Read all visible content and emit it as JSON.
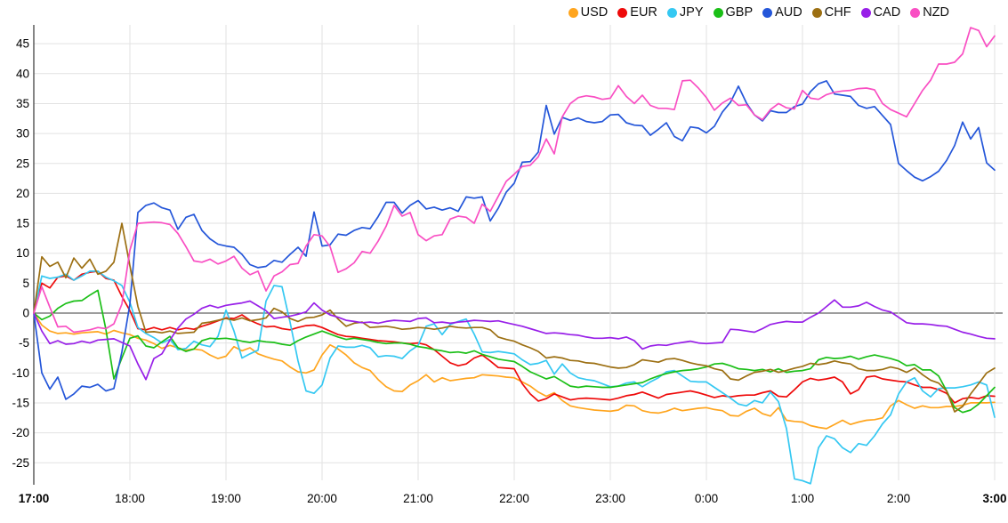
{
  "chart_data": {
    "type": "line",
    "title": "",
    "x_axis": "time",
    "x_start_hour": 17,
    "x_step_minutes": 5,
    "points_per_series": 121,
    "x_tick_labels": [
      "17:00",
      "18:00",
      "19:00",
      "20:00",
      "21:00",
      "22:00",
      "23:00",
      "0:00",
      "1:00",
      "2:00",
      "3:00"
    ],
    "x_bold_tick_labels": [
      "17:00",
      "3:00"
    ],
    "y_ticks": [
      45,
      40,
      35,
      30,
      25,
      20,
      15,
      10,
      5,
      0,
      -5,
      -10,
      -15,
      -20,
      -25
    ],
    "ylim": [
      -29,
      49
    ],
    "grid": true,
    "legend_position": "top-right",
    "zero_line_color": "#3b3b3b",
    "grid_color": "#e2e2e2",
    "axis_line_color": "#444444",
    "tick_text_color": "#000000",
    "series": [
      {
        "name": "USD",
        "color": "#FFA51E",
        "values": [
          0,
          -2.0,
          -3.0,
          -3.4,
          -3.3,
          -3.5,
          -3.3,
          -3.2,
          -3.1,
          -3.5,
          -2.9,
          -3.3,
          -3.6,
          -4.2,
          -4.5,
          -5.1,
          -5.9,
          -5.4,
          -5.8,
          -6.2,
          -6.0,
          -6.2,
          -7.0,
          -7.6,
          -7.2,
          -5.6,
          -6.3,
          -5.8,
          -6.8,
          -7.3,
          -7.7,
          -8.0,
          -9.0,
          -9.8,
          -10.0,
          -9.5,
          -7.0,
          -5.3,
          -6.0,
          -7.0,
          -8.3,
          -9.1,
          -9.6,
          -11.1,
          -12.3,
          -13.0,
          -13.1,
          -12.0,
          -11.3,
          -10.3,
          -11.5,
          -10.8,
          -11.3,
          -11.1,
          -10.9,
          -10.8,
          -10.3,
          -10.4,
          -10.5,
          -10.7,
          -10.8,
          -11.5,
          -12.2,
          -13.2,
          -13.9,
          -13.3,
          -14.6,
          -15.5,
          -15.8,
          -16.0,
          -16.2,
          -16.3,
          -16.4,
          -16.2,
          -15.4,
          -15.5,
          -16.3,
          -16.6,
          -16.7,
          -16.4,
          -15.9,
          -16.3,
          -16.1,
          -15.9,
          -15.8,
          -16.1,
          -16.3,
          -17.1,
          -17.2,
          -16.4,
          -15.9,
          -16.8,
          -17.2,
          -15.8,
          -17.9,
          -18.1,
          -18.2,
          -18.8,
          -19.1,
          -19.3,
          -18.6,
          -17.9,
          -18.6,
          -18.2,
          -17.9,
          -17.8,
          -17.5,
          -15.5,
          -14.6,
          -15.3,
          -15.9,
          -15.5,
          -15.8,
          -15.8,
          -15.6,
          -15.6,
          -15.4,
          -15.0,
          -15.0,
          -15.0,
          -14.9
        ]
      },
      {
        "name": "EUR",
        "color": "#EE0A0A",
        "values": [
          0,
          5.0,
          4.2,
          6.0,
          6.2,
          5.5,
          6.5,
          6.8,
          7.0,
          5.8,
          5.5,
          2.8,
          0.4,
          -2.6,
          -2.8,
          -2.4,
          -2.8,
          -2.4,
          -2.8,
          -2.5,
          -2.7,
          -2.2,
          -1.8,
          -1.3,
          -0.8,
          -0.9,
          -0.3,
          -1.2,
          -1.8,
          -2.3,
          -2.2,
          -2.6,
          -2.8,
          -2.4,
          -2.1,
          -2.0,
          -2.4,
          -3.0,
          -3.6,
          -3.9,
          -4.0,
          -4.2,
          -4.4,
          -4.6,
          -4.7,
          -4.8,
          -5.0,
          -5.1,
          -5.0,
          -5.3,
          -6.1,
          -7.2,
          -8.3,
          -8.8,
          -8.5,
          -7.5,
          -7.0,
          -8.0,
          -9.1,
          -9.2,
          -9.3,
          -11.8,
          -13.5,
          -14.7,
          -14.3,
          -13.5,
          -14.0,
          -14.5,
          -14.3,
          -14.2,
          -14.3,
          -14.4,
          -14.5,
          -14.2,
          -13.8,
          -13.6,
          -13.2,
          -13.7,
          -14.2,
          -13.6,
          -13.4,
          -13.2,
          -13.0,
          -13.3,
          -13.7,
          -14.1,
          -13.8,
          -14.0,
          -13.8,
          -13.7,
          -13.7,
          -13.3,
          -13.0,
          -13.9,
          -14.0,
          -12.8,
          -11.5,
          -10.9,
          -11.2,
          -11.0,
          -10.7,
          -11.5,
          -13.5,
          -12.8,
          -10.7,
          -10.5,
          -11.0,
          -11.2,
          -11.4,
          -11.5,
          -12.0,
          -12.4,
          -12.4,
          -12.8,
          -13.4,
          -15.0,
          -14.3,
          -14.1,
          -14.3,
          -13.8,
          -13.9
        ]
      },
      {
        "name": "JPY",
        "color": "#35C8F2",
        "values": [
          0,
          6.2,
          5.8,
          6.0,
          6.5,
          5.5,
          6.2,
          7.0,
          7.0,
          6.0,
          5.4,
          4.6,
          1.8,
          -2.4,
          -3.4,
          -4.1,
          -5.0,
          -4.4,
          -6.1,
          -5.9,
          -4.7,
          -5.3,
          -5.6,
          -3.9,
          0.5,
          -3.0,
          -7.5,
          -6.8,
          -6.2,
          2.0,
          4.6,
          4.4,
          -1.5,
          -8.0,
          -13.0,
          -13.4,
          -12.0,
          -7.5,
          -5.5,
          -5.7,
          -5.7,
          -5.4,
          -5.8,
          -7.3,
          -7.1,
          -7.2,
          -7.6,
          -6.3,
          -5.4,
          -2.2,
          -1.8,
          -3.6,
          -1.9,
          -1.4,
          -1.0,
          -3.5,
          -6.5,
          -6.6,
          -6.4,
          -6.6,
          -6.8,
          -7.8,
          -8.6,
          -8.4,
          -7.9,
          -10.2,
          -8.5,
          -10.0,
          -10.8,
          -11.1,
          -11.3,
          -11.8,
          -12.3,
          -12.2,
          -11.7,
          -11.5,
          -12.3,
          -11.5,
          -10.8,
          -9.8,
          -9.6,
          -10.5,
          -11.4,
          -11.5,
          -11.5,
          -12.4,
          -13.3,
          -14.2,
          -15.2,
          -15.5,
          -14.6,
          -15.0,
          -13.2,
          -14.8,
          -19.3,
          -27.7,
          -28.0,
          -28.5,
          -22.5,
          -20.5,
          -21.0,
          -22.5,
          -23.3,
          -21.8,
          -22.1,
          -20.5,
          -18.5,
          -17.0,
          -13.5,
          -11.5,
          -10.8,
          -13.0,
          -14.0,
          -12.6,
          -12.5,
          -12.5,
          -12.3,
          -12.0,
          -11.5,
          -12.0,
          -17.4
        ]
      },
      {
        "name": "GBP",
        "color": "#1BBF17",
        "values": [
          0,
          -1.1,
          -0.5,
          0.8,
          1.6,
          2.0,
          2.1,
          3.0,
          3.8,
          -2.7,
          -11.0,
          -7.5,
          -4.2,
          -3.8,
          -5.5,
          -5.8,
          -4.8,
          -3.9,
          -5.8,
          -6.4,
          -6.0,
          -4.6,
          -4.2,
          -4.3,
          -4.2,
          -4.4,
          -4.7,
          -4.9,
          -4.6,
          -4.8,
          -4.9,
          -5.2,
          -5.4,
          -4.6,
          -4.0,
          -3.5,
          -3.0,
          -3.5,
          -4.0,
          -4.4,
          -4.2,
          -4.4,
          -4.6,
          -4.9,
          -5.1,
          -5.0,
          -5.0,
          -5.2,
          -5.6,
          -5.8,
          -6.1,
          -6.3,
          -6.6,
          -6.5,
          -6.7,
          -6.3,
          -6.9,
          -7.3,
          -7.7,
          -7.9,
          -8.1,
          -8.9,
          -9.8,
          -10.4,
          -11.0,
          -10.6,
          -11.4,
          -12.2,
          -12.4,
          -12.2,
          -12.3,
          -12.4,
          -12.4,
          -12.2,
          -12.0,
          -11.8,
          -11.6,
          -11.0,
          -10.5,
          -10.1,
          -9.8,
          -9.6,
          -9.5,
          -9.3,
          -9.0,
          -8.5,
          -8.4,
          -8.8,
          -9.3,
          -9.4,
          -9.6,
          -9.4,
          -9.8,
          -9.3,
          -9.9,
          -9.7,
          -9.6,
          -9.3,
          -7.8,
          -7.4,
          -7.6,
          -7.5,
          -7.2,
          -7.7,
          -7.3,
          -7.0,
          -7.3,
          -7.6,
          -8.0,
          -8.8,
          -8.6,
          -9.5,
          -9.5,
          -10.5,
          -13.0,
          -15.8,
          -16.6,
          -16.2,
          -15.2,
          -13.8,
          -12.4
        ]
      },
      {
        "name": "AUD",
        "color": "#2456D9",
        "values": [
          0,
          -10.0,
          -12.7,
          -10.7,
          -14.4,
          -13.5,
          -12.2,
          -12.4,
          -11.9,
          -13.0,
          -12.6,
          -6.5,
          1.5,
          16.8,
          18.0,
          18.4,
          17.6,
          17.2,
          14.0,
          16.0,
          16.5,
          13.8,
          12.4,
          11.5,
          11.2,
          11.0,
          9.8,
          8.1,
          7.6,
          7.8,
          8.8,
          8.5,
          9.8,
          11.0,
          9.5,
          16.9,
          11.2,
          11.4,
          13.2,
          13.0,
          13.8,
          14.3,
          14.1,
          16.1,
          18.5,
          18.5,
          16.7,
          18.0,
          18.8,
          17.4,
          17.7,
          17.2,
          17.6,
          17.0,
          19.4,
          19.2,
          19.4,
          15.4,
          17.5,
          20.2,
          21.7,
          25.2,
          25.3,
          26.9,
          34.7,
          29.9,
          32.7,
          32.2,
          32.6,
          32.0,
          31.8,
          32.0,
          33.1,
          33.2,
          31.8,
          31.4,
          31.3,
          29.7,
          30.7,
          31.8,
          29.5,
          28.8,
          31.1,
          30.9,
          30.1,
          31.2,
          33.6,
          35.2,
          37.9,
          35.1,
          33.1,
          32.1,
          33.8,
          33.5,
          33.5,
          34.5,
          34.9,
          37.0,
          38.3,
          38.8,
          36.6,
          36.4,
          36.2,
          34.7,
          34.2,
          34.5,
          33.0,
          31.5,
          25.0,
          23.8,
          22.7,
          22.1,
          22.8,
          23.7,
          25.5,
          28.0,
          31.9,
          29.1,
          31.0,
          25.1,
          23.9
        ]
      },
      {
        "name": "CHF",
        "color": "#9C6F12",
        "values": [
          0,
          9.4,
          7.8,
          8.5,
          5.9,
          9.2,
          7.5,
          9.0,
          6.5,
          7.0,
          8.5,
          15.0,
          7.9,
          1.1,
          -3.2,
          -3.1,
          -3.3,
          -3.0,
          -3.4,
          -3.3,
          -3.2,
          -1.7,
          -1.5,
          -1.2,
          -0.9,
          -1.2,
          -0.8,
          -1.3,
          -1.1,
          -0.8,
          0.8,
          0.2,
          -0.9,
          -1.4,
          -0.8,
          -0.7,
          -0.3,
          0.5,
          -1.0,
          -2.2,
          -1.7,
          -1.5,
          -2.4,
          -2.3,
          -2.2,
          -2.4,
          -2.7,
          -2.6,
          -2.4,
          -2.5,
          -2.7,
          -2.5,
          -2.2,
          -2.4,
          -2.5,
          -2.4,
          -2.4,
          -2.8,
          -4.0,
          -4.4,
          -4.7,
          -5.3,
          -5.8,
          -6.4,
          -7.5,
          -7.3,
          -7.5,
          -7.9,
          -8.0,
          -8.3,
          -8.4,
          -8.7,
          -9.0,
          -9.2,
          -9.1,
          -8.6,
          -7.8,
          -8.0,
          -8.2,
          -7.7,
          -7.6,
          -7.9,
          -8.3,
          -8.6,
          -8.8,
          -9.3,
          -9.6,
          -11.0,
          -11.2,
          -10.5,
          -9.9,
          -9.7,
          -9.4,
          -9.9,
          -9.6,
          -9.2,
          -8.9,
          -8.4,
          -8.6,
          -8.4,
          -8.0,
          -8.3,
          -8.5,
          -9.3,
          -9.6,
          -9.6,
          -9.4,
          -9.0,
          -9.3,
          -9.9,
          -9.2,
          -10.3,
          -11.2,
          -11.7,
          -13.0,
          -16.5,
          -15.6,
          -13.5,
          -11.8,
          -10.0,
          -9.2
        ]
      },
      {
        "name": "CAD",
        "color": "#981FE8",
        "values": [
          0,
          -3.0,
          -5.1,
          -4.6,
          -5.2,
          -5.1,
          -4.7,
          -5.0,
          -4.5,
          -4.4,
          -4.3,
          -4.9,
          -5.5,
          -8.5,
          -11.1,
          -7.6,
          -6.8,
          -4.5,
          -2.5,
          -1.0,
          -0.2,
          0.8,
          1.3,
          0.9,
          1.3,
          1.5,
          1.7,
          2.0,
          1.2,
          0.4,
          -0.9,
          -0.7,
          -0.5,
          -0.2,
          0.2,
          1.7,
          0.5,
          -0.3,
          -0.7,
          -1.2,
          -1.4,
          -1.6,
          -1.5,
          -1.7,
          -1.4,
          -1.2,
          -1.3,
          -1.4,
          -0.9,
          -0.8,
          -1.6,
          -1.5,
          -1.7,
          -1.5,
          -1.4,
          -1.2,
          -1.3,
          -1.4,
          -1.3,
          -1.6,
          -1.9,
          -2.2,
          -2.6,
          -3.0,
          -3.4,
          -3.3,
          -3.4,
          -3.6,
          -3.7,
          -4.0,
          -4.2,
          -4.2,
          -4.1,
          -4.3,
          -4.0,
          -4.6,
          -6.0,
          -5.5,
          -5.3,
          -5.4,
          -5.1,
          -4.9,
          -4.7,
          -5.0,
          -5.1,
          -5.0,
          -4.9,
          -2.7,
          -2.8,
          -3.0,
          -3.2,
          -2.6,
          -1.9,
          -1.6,
          -1.4,
          -1.5,
          -1.5,
          -0.7,
          0.0,
          1.1,
          2.2,
          1.0,
          1.0,
          1.2,
          1.8,
          1.1,
          0.5,
          0.2,
          -0.7,
          -1.6,
          -1.8,
          -1.8,
          -1.9,
          -2.1,
          -2.2,
          -2.7,
          -3.2,
          -3.5,
          -3.9,
          -4.2,
          -4.3
        ]
      },
      {
        "name": "NZD",
        "color": "#F94FC3",
        "values": [
          0,
          4.4,
          1.0,
          -2.3,
          -2.2,
          -3.2,
          -3.0,
          -2.8,
          -2.4,
          -2.6,
          -1.8,
          1.5,
          10.5,
          15.0,
          15.1,
          15.2,
          15.1,
          14.8,
          13.3,
          11.1,
          8.7,
          8.5,
          9.0,
          8.2,
          8.7,
          9.5,
          7.5,
          6.4,
          7.0,
          3.7,
          6.2,
          6.9,
          8.1,
          8.3,
          11.2,
          13.1,
          12.9,
          11.1,
          6.8,
          7.4,
          8.4,
          10.3,
          10.0,
          12.0,
          14.5,
          18.0,
          16.2,
          16.8,
          13.1,
          12.1,
          12.9,
          13.1,
          15.7,
          16.2,
          16.0,
          15.0,
          18.2,
          17.0,
          19.5,
          22.0,
          23.2,
          24.5,
          24.7,
          26.1,
          29.1,
          26.6,
          32.8,
          35.0,
          36.0,
          36.3,
          36.1,
          35.7,
          35.9,
          38.0,
          36.2,
          35.0,
          36.4,
          34.7,
          34.2,
          34.2,
          34.0,
          38.8,
          38.9,
          37.6,
          36.0,
          33.9,
          35.1,
          35.9,
          34.7,
          34.8,
          33.1,
          32.3,
          34.0,
          35.0,
          34.3,
          34.1,
          37.2,
          35.9,
          35.7,
          36.5,
          36.9,
          37.1,
          37.2,
          37.5,
          37.6,
          37.3,
          35.0,
          34.0,
          33.4,
          32.8,
          35.0,
          37.2,
          38.9,
          41.6,
          41.6,
          41.9,
          43.3,
          47.7,
          47.2,
          44.5,
          46.3
        ]
      }
    ]
  }
}
